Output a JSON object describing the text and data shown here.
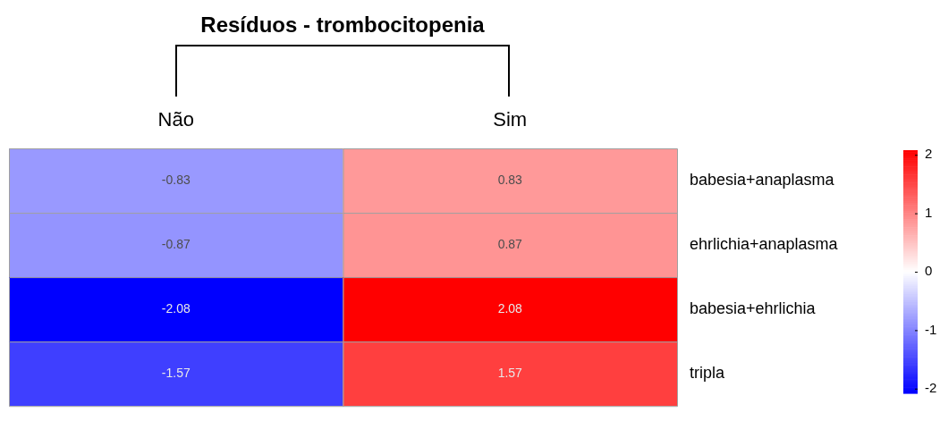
{
  "chart_data": {
    "type": "heatmap",
    "title": "Resíduos - trombocitopenia",
    "categories": [
      "Não",
      "Sim"
    ],
    "y_categories": [
      "babesia+anaplasma",
      "ehrlichia+anaplasma",
      "babesia+ehrlichia",
      "tripla"
    ],
    "cells": [
      [
        -0.83,
        0.83
      ],
      [
        -0.87,
        0.87
      ],
      [
        -2.08,
        2.08
      ],
      [
        -1.57,
        1.57
      ]
    ],
    "data_labels": true,
    "clim": [
      -2.08,
      2.08
    ],
    "cticks": [
      -2,
      -1,
      0,
      1,
      2
    ]
  }
}
